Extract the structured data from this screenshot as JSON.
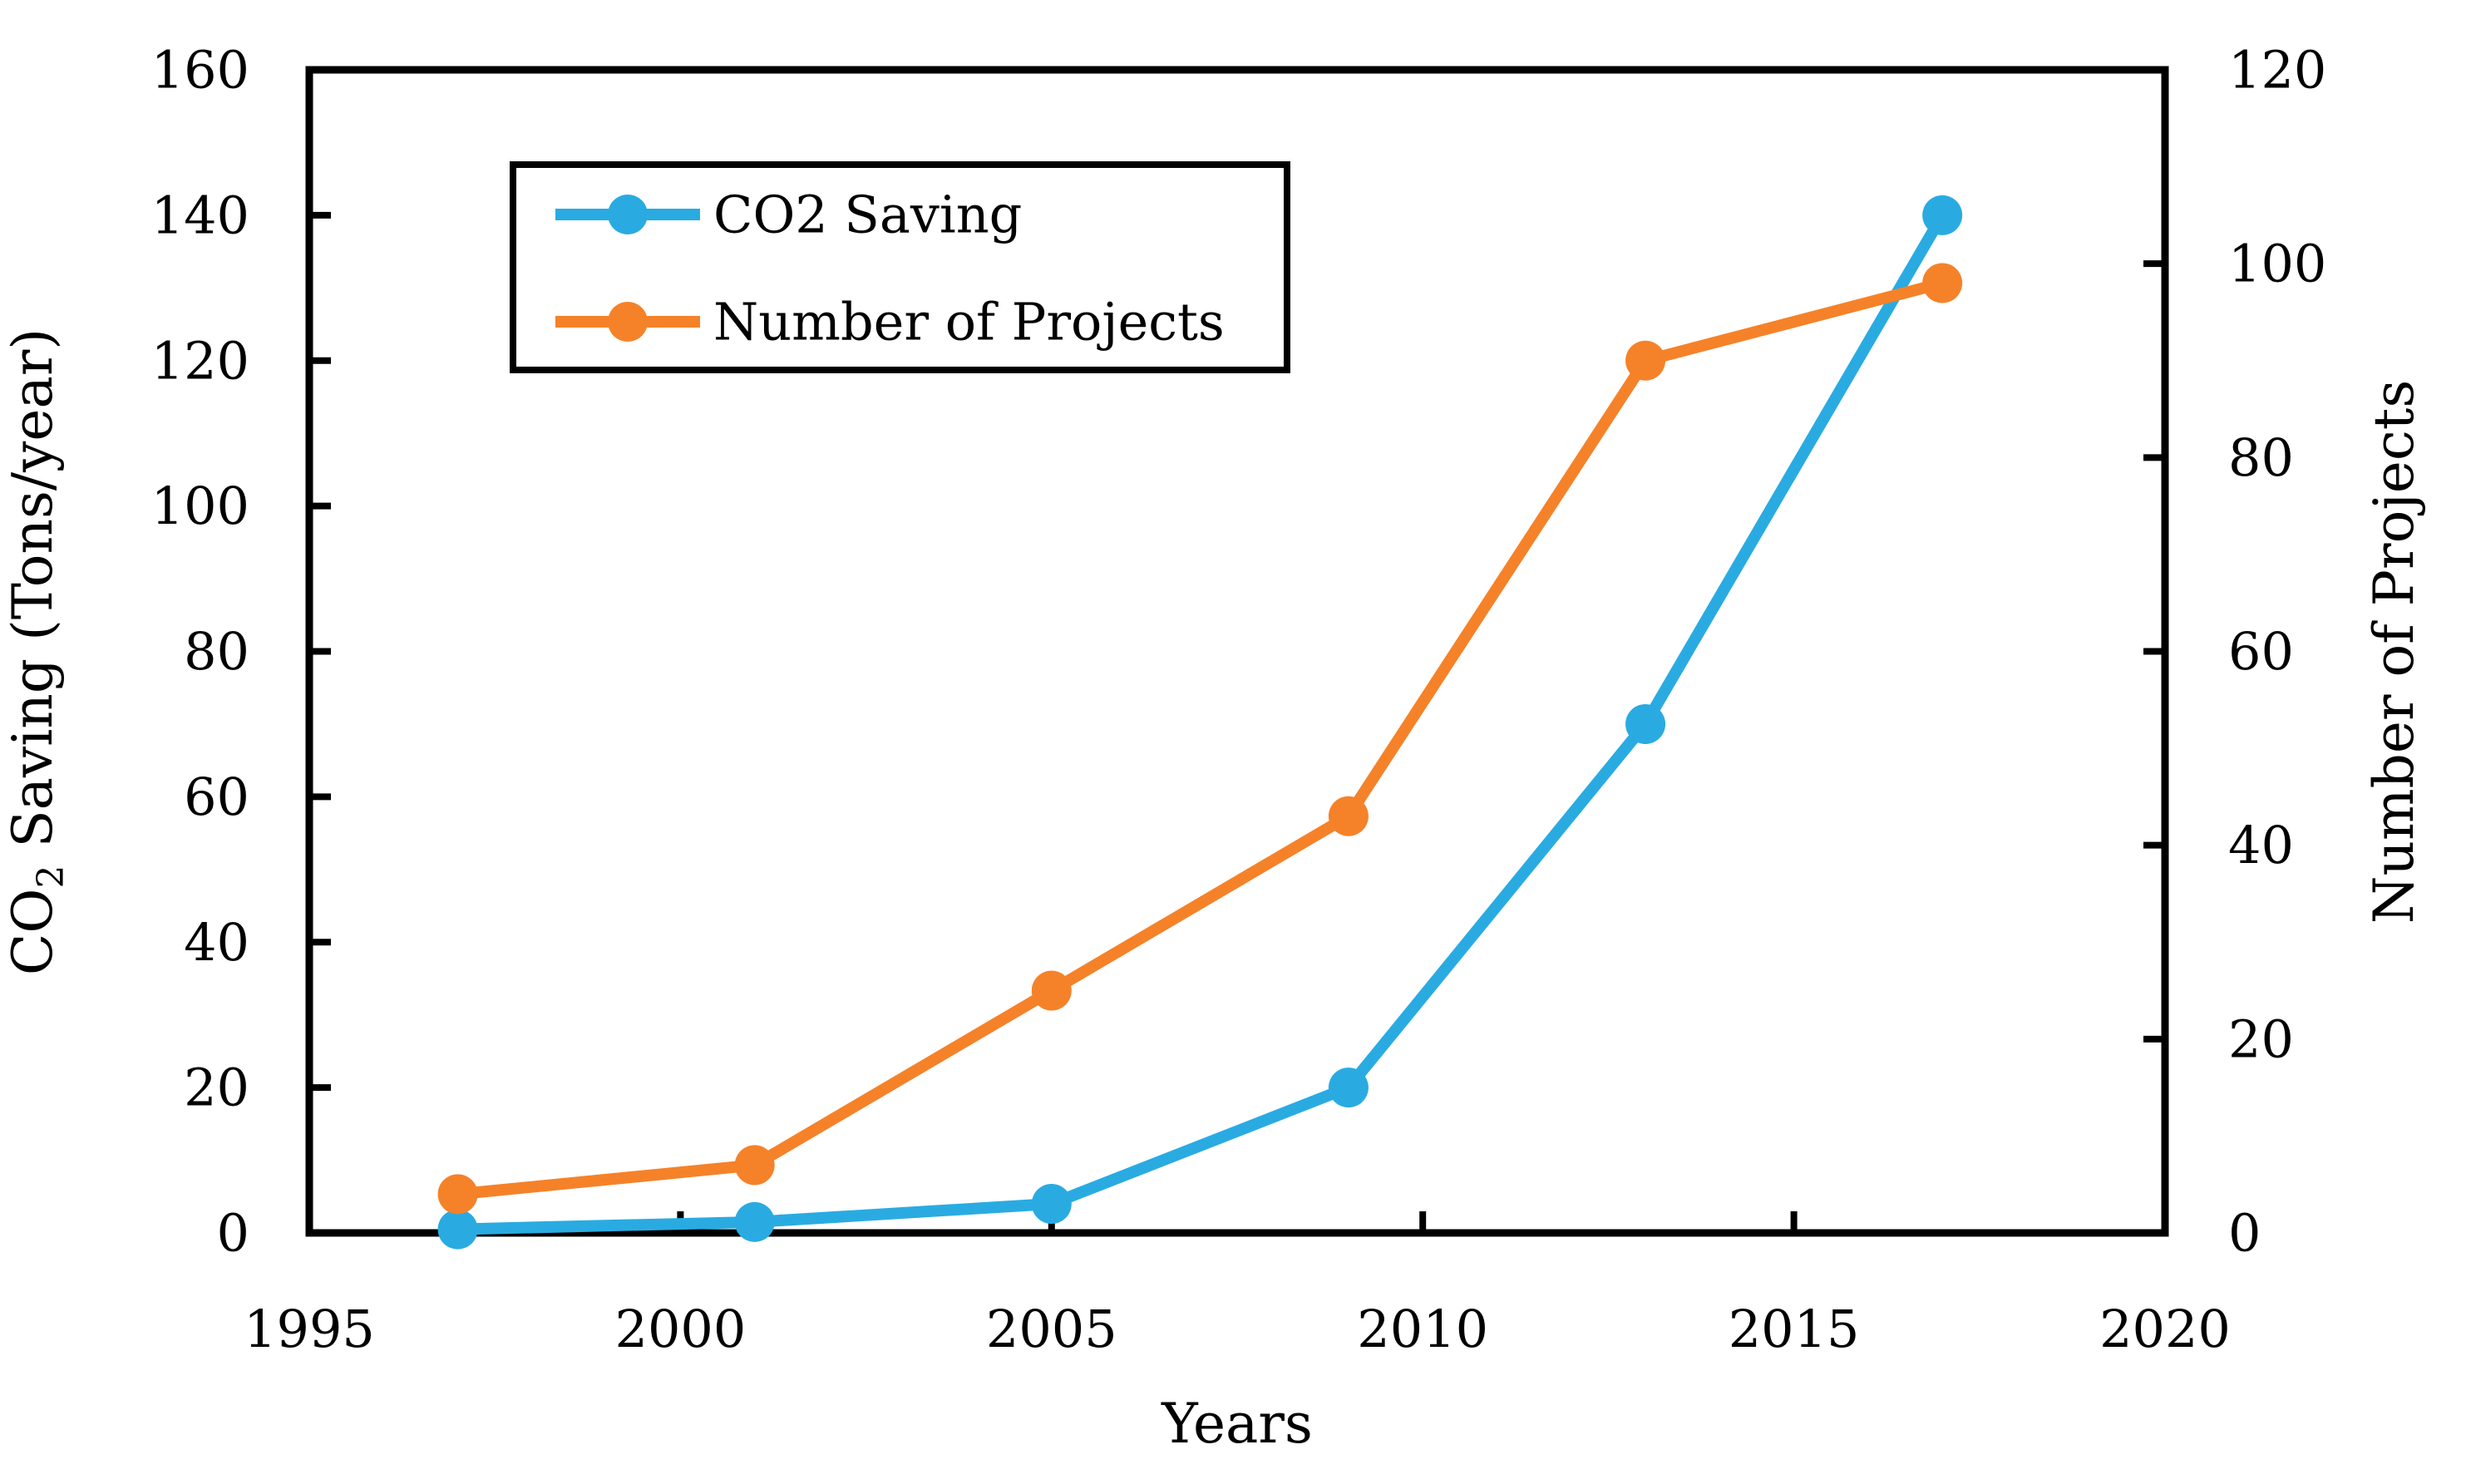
{
  "chart_data": {
    "type": "line",
    "title": "",
    "xlabel": "Years",
    "ylabel_left": "CO2 Saving (Tons/year)",
    "ylabel_left_parts": {
      "prefix": "CO",
      "sub": "2",
      "suffix": " Saving (Tons/year)"
    },
    "ylabel_right": "Number of Projects",
    "x": [
      1997,
      2001,
      2005,
      2009,
      2013,
      2017
    ],
    "series": [
      {
        "name": "CO2 Saving",
        "axis": "left",
        "color": "#29ABE2",
        "values": [
          0.5,
          1.5,
          4,
          20,
          70,
          140
        ]
      },
      {
        "name": "Number of Projects",
        "axis": "right",
        "color": "#F58229",
        "values": [
          4,
          7,
          25,
          43,
          90,
          98
        ]
      }
    ],
    "x_ticks": [
      1995,
      2000,
      2005,
      2010,
      2015,
      2020
    ],
    "left_ticks": [
      0,
      20,
      40,
      60,
      80,
      100,
      120,
      140,
      160
    ],
    "right_ticks": [
      0,
      20,
      40,
      60,
      80,
      100,
      120
    ],
    "xlim": [
      1995,
      2020
    ],
    "ylim_left": [
      0,
      160
    ],
    "ylim_right": [
      0,
      120
    ],
    "grid": false,
    "legend_position": "upper-left-inside"
  },
  "colors": {
    "axis": "#000000",
    "background": "#FFFFFF"
  }
}
